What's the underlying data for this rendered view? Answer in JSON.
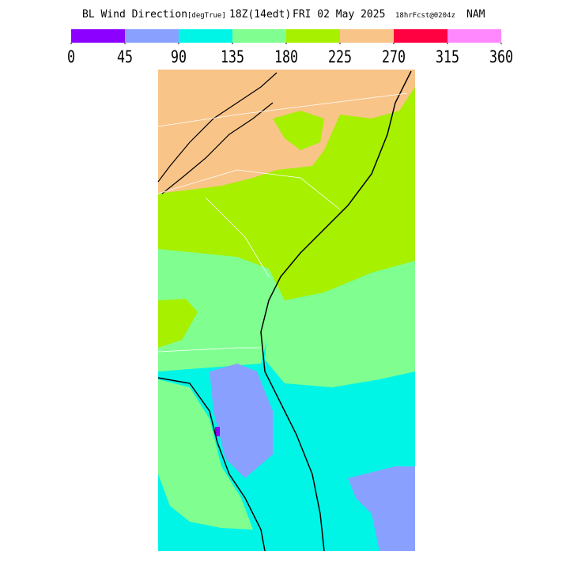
{
  "header": {
    "title": "BL Wind Direction",
    "units": "[degTrue]",
    "valid": "18Z(14edt)",
    "date": "FRI 02 May 2025",
    "forecast": "18hrFcst@0204z",
    "model": "NAM"
  },
  "legend": {
    "colors": [
      "#8c00ff",
      "#8aa0ff",
      "#00f5e6",
      "#80ff90",
      "#a6f000",
      "#f8c488",
      "#ff0040",
      "#ff88ff"
    ],
    "ticks": [
      0,
      45,
      90,
      135,
      180,
      225,
      270,
      315,
      360
    ]
  }
}
